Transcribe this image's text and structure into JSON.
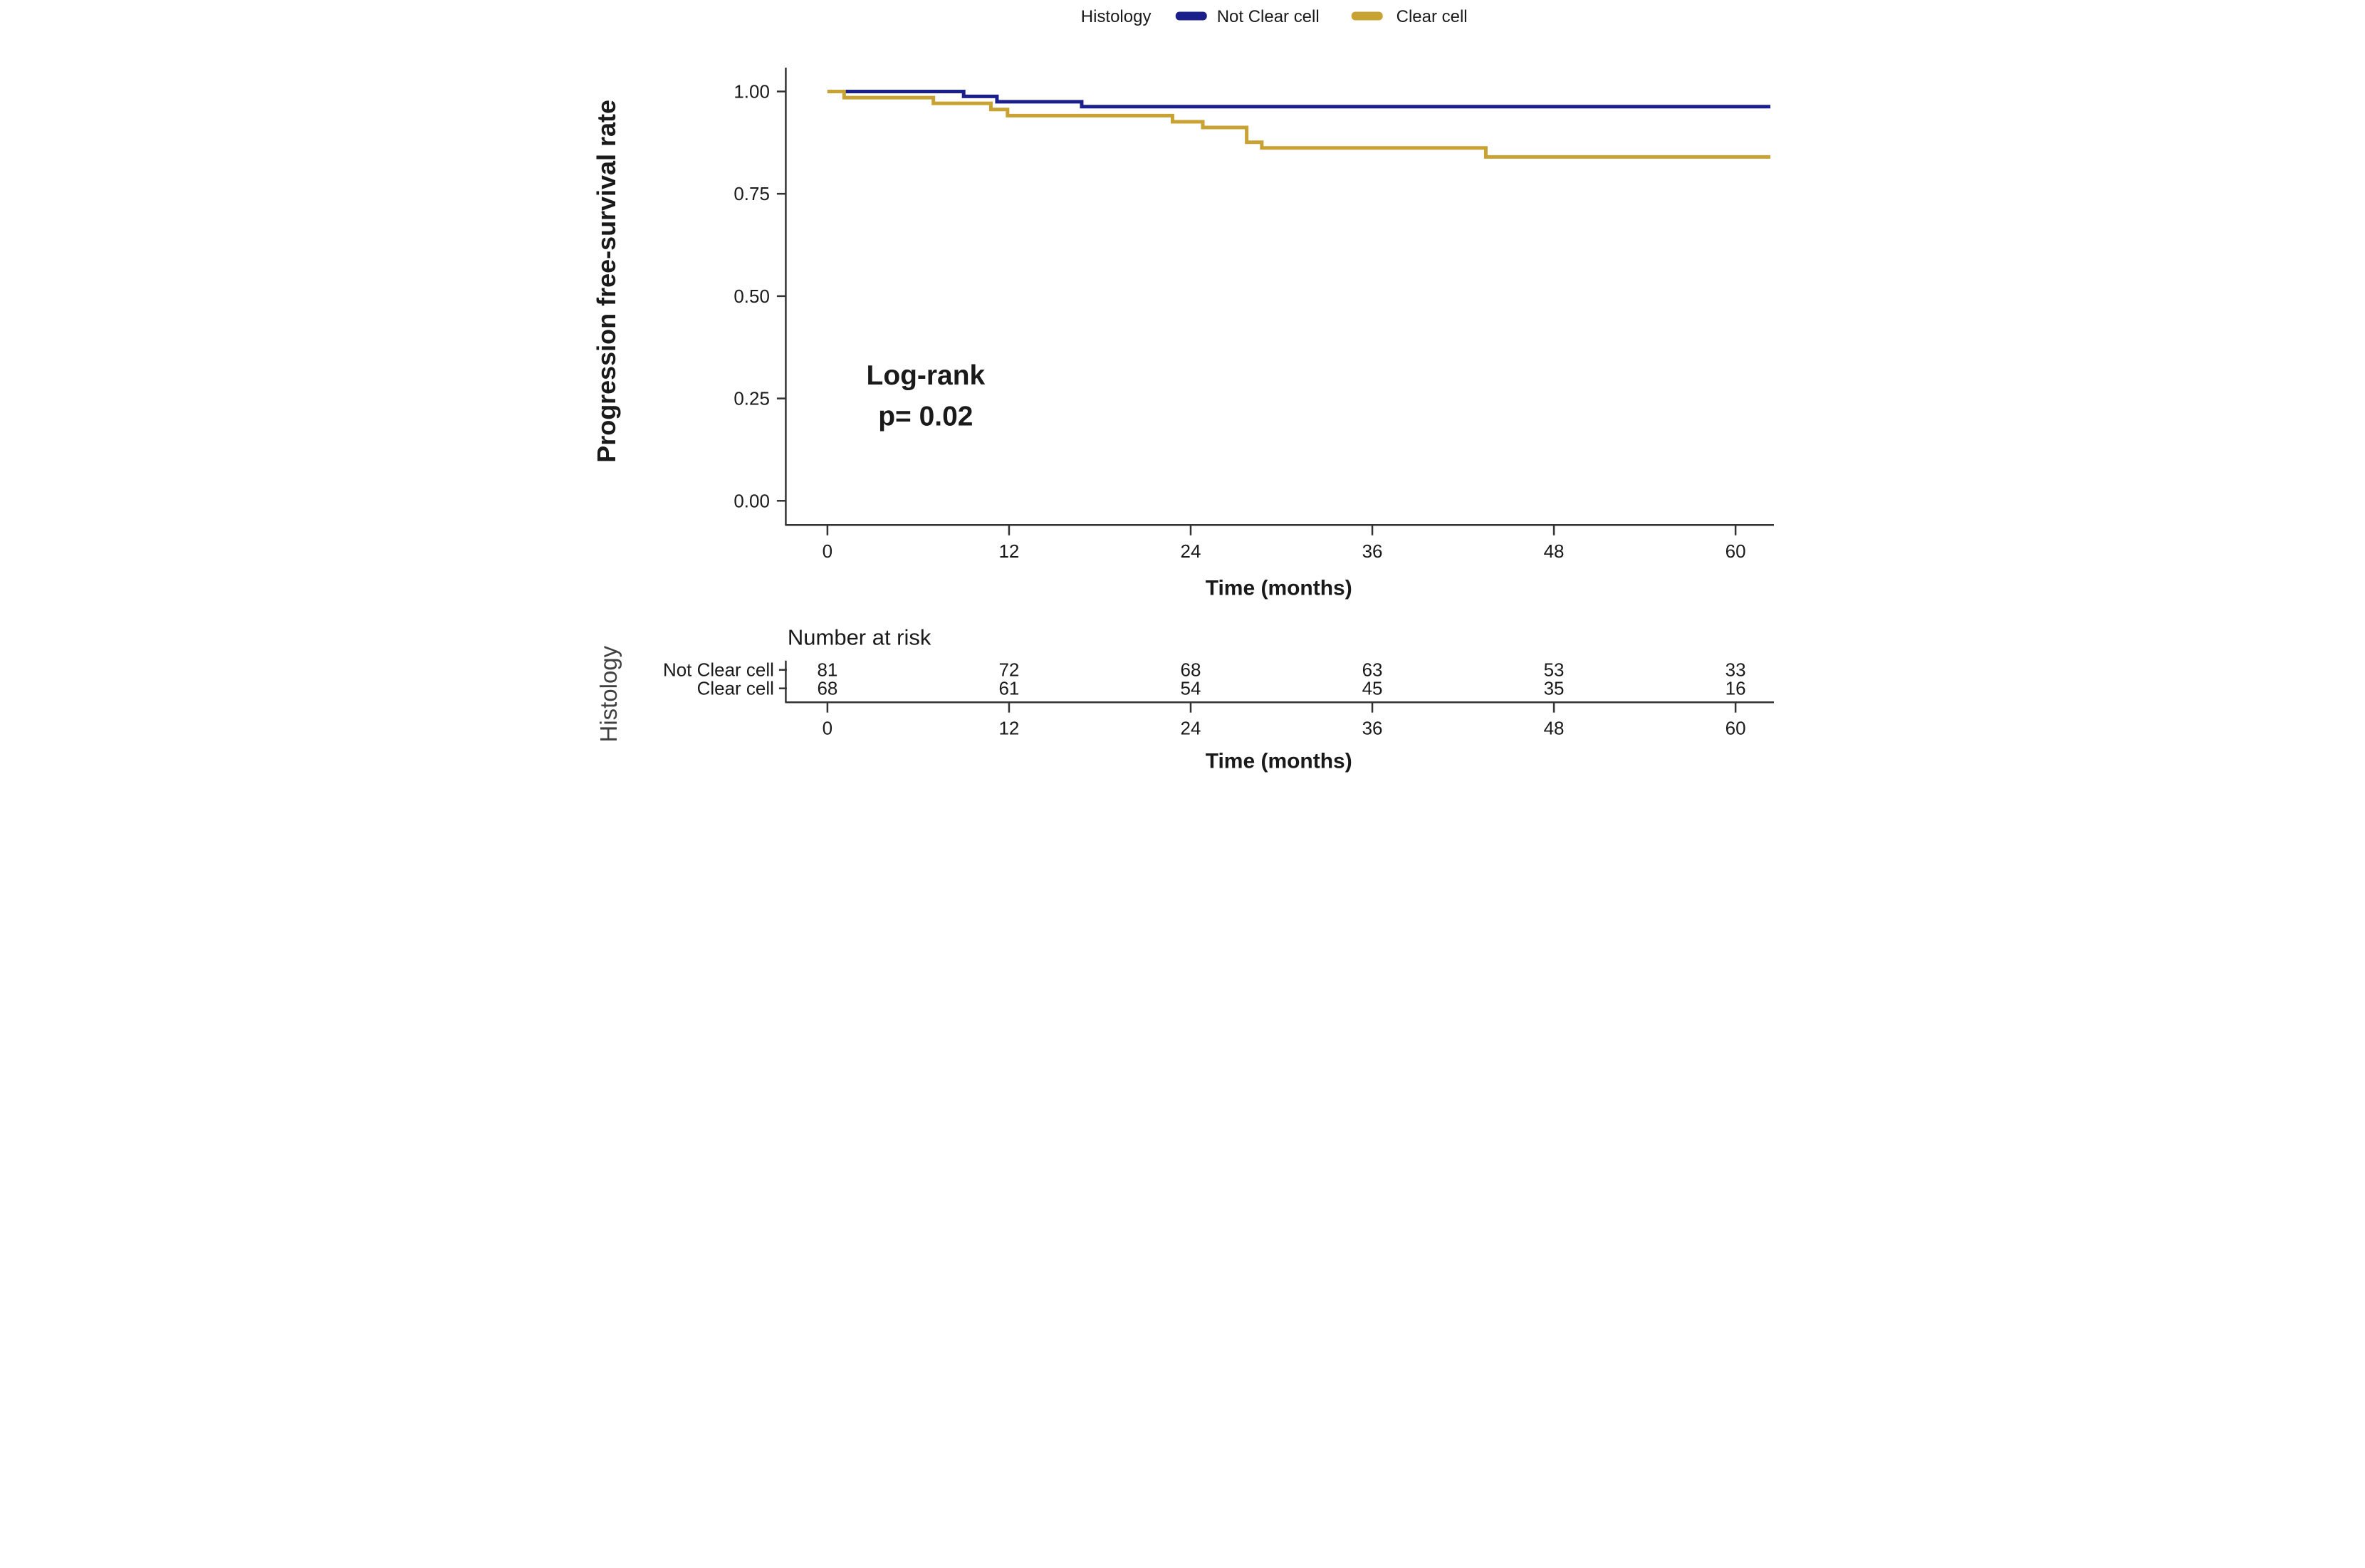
{
  "figure": {
    "legend": {
      "title": "Histology",
      "item1": "Not Clear cell",
      "item2": "Clear cell"
    },
    "y_axis": {
      "title": "Progression free-survival rate",
      "tick_labels": [
        "1.00",
        "0.75",
        "0.50",
        "0.25",
        "0.00"
      ],
      "tick_values": [
        1.0,
        0.75,
        0.5,
        0.25,
        0.0
      ]
    },
    "x_axis": {
      "title": "Time (months)",
      "tick_labels": [
        "0",
        "12",
        "24",
        "36",
        "48",
        "60"
      ],
      "tick_values": [
        0,
        12,
        24,
        36,
        48,
        60
      ]
    },
    "annotation": {
      "line1": "Log-rank",
      "line2": "p= 0.02"
    }
  },
  "chart_data": {
    "type": "line",
    "subtype": "kaplan-meier-step",
    "title": "",
    "xlabel": "Time (months)",
    "ylabel": "Progression free-survival rate",
    "legend_title": "Histology",
    "legend_position": "top",
    "grid": false,
    "xlim": [
      0,
      62.3
    ],
    "ylim": [
      0.0,
      1.0
    ],
    "x_ticks": [
      0,
      12,
      24,
      36,
      48,
      60
    ],
    "y_ticks": [
      0.0,
      0.25,
      0.5,
      0.75,
      1.0
    ],
    "x_end": 62.3,
    "annotation": {
      "text": [
        "Log-rank",
        "p= 0.02"
      ],
      "x": 6.5,
      "y": 0.27
    },
    "series": [
      {
        "name": "Not Clear cell",
        "color": "#1b1f8c",
        "steps": [
          [
            0,
            1.0
          ],
          [
            9.0,
            0.988
          ],
          [
            11.2,
            0.975
          ],
          [
            16.8,
            0.963
          ]
        ]
      },
      {
        "name": "Clear cell",
        "color": "#c8a232",
        "steps": [
          [
            0,
            1.0
          ],
          [
            1.1,
            0.985
          ],
          [
            7.0,
            0.971
          ],
          [
            10.8,
            0.956
          ],
          [
            11.9,
            0.941
          ],
          [
            22.8,
            0.926
          ],
          [
            24.8,
            0.912
          ],
          [
            27.7,
            0.876
          ],
          [
            28.7,
            0.862
          ],
          [
            43.5,
            0.84
          ]
        ]
      }
    ]
  },
  "risk_table": {
    "title": "Number at risk",
    "axis_label": "Histology",
    "xlabel": "Time (months)",
    "x_tick_labels": [
      "0",
      "12",
      "24",
      "36",
      "48",
      "60"
    ],
    "rows": [
      {
        "name": "Not Clear cell",
        "color": "#1b1f8c",
        "values": [
          "81",
          "72",
          "68",
          "63",
          "53",
          "33"
        ]
      },
      {
        "name": "Clear cell",
        "color": "#c8a232",
        "values": [
          "68",
          "61",
          "54",
          "45",
          "35",
          "16"
        ]
      }
    ]
  }
}
